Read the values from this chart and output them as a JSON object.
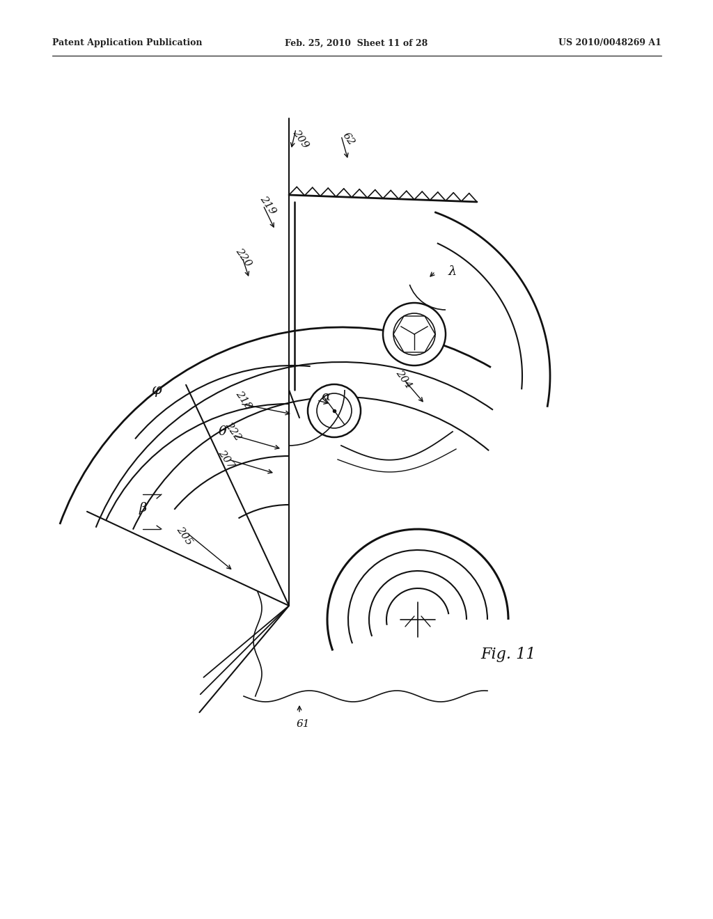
{
  "background_color": "#ffffff",
  "header_left": "Patent Application Publication",
  "header_center": "Feb. 25, 2010  Sheet 11 of 28",
  "header_right": "US 2010/0048269 A1",
  "figure_label": "Fig. 11",
  "line_color": "#111111"
}
